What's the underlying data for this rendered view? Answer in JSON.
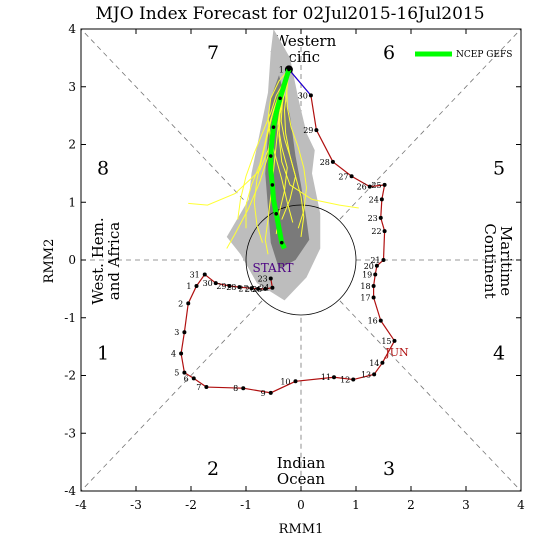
{
  "colors": {
    "observed": "#b01010",
    "forecast_link": "#0000ff",
    "ensemble_member": "#ffff33",
    "ensemble_mean": "#00ff00",
    "spread_outer": "#bdbdbd",
    "spread_inner": "#7a7a7a",
    "start_label": "#4b0082",
    "month_label": "#b01010"
  },
  "chart_data": {
    "type": "line",
    "title": "MJO Index Forecast for 02Jul2015-16Jul2015",
    "xlabel": "RMM1",
    "ylabel": "RMM2",
    "xlim": [
      -4,
      4
    ],
    "ylim": [
      -4,
      4
    ],
    "xticks": [
      -4,
      -3,
      -2,
      -1,
      0,
      1,
      2,
      3,
      4
    ],
    "yticks": [
      -4,
      -3,
      -2,
      -1,
      0,
      1,
      2,
      3,
      4
    ],
    "unit_circle_radius": 1,
    "legend": [
      {
        "label": "NCEP GEFS",
        "color": "#00ff00",
        "position": "top-right"
      }
    ],
    "phases": [
      {
        "label": "1",
        "x": -3.6,
        "y": -1.6
      },
      {
        "label": "2",
        "x": -1.6,
        "y": -3.6
      },
      {
        "label": "3",
        "x": 1.6,
        "y": -3.6
      },
      {
        "label": "4",
        "x": 3.6,
        "y": -1.6
      },
      {
        "label": "5",
        "x": 3.6,
        "y": 1.6
      },
      {
        "label": "6",
        "x": 1.6,
        "y": 3.6
      },
      {
        "label": "7",
        "x": -1.6,
        "y": 3.6
      },
      {
        "label": "8",
        "x": -3.6,
        "y": 1.6
      }
    ],
    "regions": [
      {
        "lines": [
          "Western",
          "Pacific"
        ],
        "orientation": "horizontal",
        "side": "top"
      },
      {
        "lines": [
          "Indian",
          "Ocean"
        ],
        "orientation": "horizontal",
        "side": "bottom"
      },
      {
        "lines": [
          "West. Hem.",
          "and Africa"
        ],
        "orientation": "vertical-left",
        "side": "left"
      },
      {
        "lines": [
          "Maritime",
          "Continent"
        ],
        "orientation": "vertical-right",
        "side": "right"
      }
    ],
    "start_label": "START",
    "month_label": "JUN",
    "observed": [
      {
        "day": "31",
        "x": -1.75,
        "y": -0.25
      },
      {
        "day": "1",
        "x": -1.9,
        "y": -0.45
      },
      {
        "day": "2",
        "x": -2.05,
        "y": -0.75
      },
      {
        "day": "3",
        "x": -2.12,
        "y": -1.25
      },
      {
        "day": "4",
        "x": -2.18,
        "y": -1.62
      },
      {
        "day": "5",
        "x": -2.12,
        "y": -1.95
      },
      {
        "day": "6",
        "x": -1.95,
        "y": -2.05
      },
      {
        "day": "7",
        "x": -1.72,
        "y": -2.2
      },
      {
        "day": "8",
        "x": -1.05,
        "y": -2.22
      },
      {
        "day": "9",
        "x": -0.55,
        "y": -2.3
      },
      {
        "day": "10",
        "x": -0.1,
        "y": -2.1
      },
      {
        "day": "11",
        "x": 0.6,
        "y": -2.03
      },
      {
        "day": "12",
        "x": 0.95,
        "y": -2.07
      },
      {
        "day": "13",
        "x": 1.33,
        "y": -1.98
      },
      {
        "day": "14",
        "x": 1.48,
        "y": -1.78
      },
      {
        "day": "15",
        "x": 1.7,
        "y": -1.4
      },
      {
        "day": "16",
        "x": 1.45,
        "y": -1.05
      },
      {
        "day": "17",
        "x": 1.32,
        "y": -0.65
      },
      {
        "day": "18",
        "x": 1.32,
        "y": -0.45
      },
      {
        "day": "19",
        "x": 1.35,
        "y": -0.25
      },
      {
        "day": "20",
        "x": 1.38,
        "y": -0.1
      },
      {
        "day": "21",
        "x": 1.5,
        "y": 0.0
      },
      {
        "day": "22",
        "x": 1.52,
        "y": 0.5
      },
      {
        "day": "23",
        "x": 1.45,
        "y": 0.73
      },
      {
        "day": "24",
        "x": 1.47,
        "y": 1.05
      },
      {
        "day": "25",
        "x": 1.52,
        "y": 1.3
      },
      {
        "day": "26",
        "x": 1.25,
        "y": 1.27
      },
      {
        "day": "27",
        "x": 0.92,
        "y": 1.45
      },
      {
        "day": "28",
        "x": 0.58,
        "y": 1.7
      },
      {
        "day": "29",
        "x": 0.28,
        "y": 2.25
      },
      {
        "day": "30",
        "x": 0.18,
        "y": 2.85
      },
      {
        "day": "1",
        "x": -0.22,
        "y": 3.3
      }
    ],
    "start_curl": [
      {
        "day": "30",
        "x": -1.55,
        "y": -0.4
      },
      {
        "day": "29",
        "x": -1.3,
        "y": -0.45
      },
      {
        "day": "28",
        "x": -1.12,
        "y": -0.47
      },
      {
        "day": "27",
        "x": -0.9,
        "y": -0.49
      },
      {
        "day": "26",
        "x": -0.78,
        "y": -0.5
      },
      {
        "day": "25",
        "x": -0.65,
        "y": -0.5
      },
      {
        "day": "24",
        "x": -0.52,
        "y": -0.48
      },
      {
        "day": "23",
        "x": -0.55,
        "y": -0.32
      }
    ],
    "ensemble_mean": [
      {
        "x": -0.22,
        "y": 3.3
      },
      {
        "x": -0.3,
        "y": 3.05
      },
      {
        "x": -0.38,
        "y": 2.8
      },
      {
        "x": -0.45,
        "y": 2.55
      },
      {
        "x": -0.5,
        "y": 2.3
      },
      {
        "x": -0.53,
        "y": 2.05
      },
      {
        "x": -0.55,
        "y": 1.8
      },
      {
        "x": -0.55,
        "y": 1.55
      },
      {
        "x": -0.52,
        "y": 1.3
      },
      {
        "x": -0.5,
        "y": 1.05
      },
      {
        "x": -0.45,
        "y": 0.8
      },
      {
        "x": -0.4,
        "y": 0.55
      },
      {
        "x": -0.35,
        "y": 0.3
      },
      {
        "x": -0.3,
        "y": 0.2
      }
    ],
    "ensemble_members": [
      [
        [
          -0.22,
          3.3
        ],
        [
          -0.25,
          3.0
        ],
        [
          -0.3,
          2.6
        ],
        [
          -0.28,
          2.2
        ],
        [
          -0.2,
          1.8
        ],
        [
          -0.1,
          1.45
        ],
        [
          0.0,
          1.1
        ],
        [
          0.05,
          0.75
        ],
        [
          0.0,
          0.4
        ]
      ],
      [
        [
          -0.22,
          3.3
        ],
        [
          -0.35,
          3.0
        ],
        [
          -0.5,
          2.6
        ],
        [
          -0.6,
          2.2
        ],
        [
          -0.7,
          1.8
        ],
        [
          -0.8,
          1.4
        ],
        [
          -0.85,
          1.0
        ],
        [
          -0.8,
          0.6
        ],
        [
          -0.7,
          0.3
        ]
      ],
      [
        [
          -0.22,
          3.3
        ],
        [
          -0.3,
          2.9
        ],
        [
          -0.4,
          2.45
        ],
        [
          -0.45,
          2.0
        ],
        [
          -0.5,
          1.55
        ],
        [
          -0.55,
          1.1
        ],
        [
          -0.6,
          0.7
        ],
        [
          -0.65,
          0.35
        ],
        [
          -0.6,
          0.1
        ]
      ],
      [
        [
          -0.22,
          3.3
        ],
        [
          -0.28,
          3.1
        ],
        [
          -0.36,
          2.75
        ],
        [
          -0.42,
          2.35
        ],
        [
          -0.35,
          1.95
        ],
        [
          -0.25,
          1.6
        ],
        [
          -0.3,
          1.2
        ],
        [
          -0.4,
          0.8
        ],
        [
          -0.45,
          0.45
        ]
      ],
      [
        [
          -0.22,
          3.3
        ],
        [
          -0.32,
          3.05
        ],
        [
          -0.46,
          2.7
        ],
        [
          -0.58,
          2.35
        ],
        [
          -0.66,
          2.0
        ],
        [
          -0.75,
          1.65
        ],
        [
          -0.9,
          1.3
        ],
        [
          -1.0,
          0.95
        ],
        [
          -1.0,
          0.55
        ]
      ],
      [
        [
          -0.22,
          3.3
        ],
        [
          -0.26,
          3.0
        ],
        [
          -0.25,
          2.65
        ],
        [
          -0.18,
          2.3
        ],
        [
          -0.05,
          1.95
        ],
        [
          0.05,
          1.6
        ],
        [
          0.1,
          1.25
        ],
        [
          0.05,
          0.85
        ],
        [
          -0.05,
          0.55
        ]
      ],
      [
        [
          -0.22,
          3.3
        ],
        [
          -0.33,
          3.0
        ],
        [
          -0.42,
          2.65
        ],
        [
          -0.48,
          2.25
        ],
        [
          -0.6,
          1.9
        ],
        [
          -0.75,
          1.55
        ],
        [
          -1.2,
          1.15
        ],
        [
          -1.7,
          0.95
        ],
        [
          -2.05,
          0.98
        ]
      ],
      [
        [
          -0.22,
          3.3
        ],
        [
          -0.3,
          2.95
        ],
        [
          -0.38,
          2.55
        ],
        [
          -0.4,
          2.15
        ],
        [
          -0.35,
          1.7
        ],
        [
          -0.2,
          1.3
        ],
        [
          0.2,
          1.05
        ],
        [
          0.7,
          0.95
        ],
        [
          1.05,
          0.9
        ]
      ],
      [
        [
          -0.22,
          3.3
        ],
        [
          -0.35,
          3.0
        ],
        [
          -0.48,
          2.6
        ],
        [
          -0.55,
          2.2
        ],
        [
          -0.6,
          1.8
        ],
        [
          -0.75,
          1.35
        ],
        [
          -0.95,
          0.9
        ],
        [
          -1.2,
          0.45
        ],
        [
          -1.35,
          0.2
        ]
      ],
      [
        [
          -0.22,
          3.3
        ],
        [
          -0.29,
          3.0
        ],
        [
          -0.34,
          2.7
        ],
        [
          -0.36,
          2.4
        ],
        [
          -0.3,
          2.1
        ],
        [
          -0.2,
          1.8
        ],
        [
          -0.1,
          1.45
        ],
        [
          -0.2,
          1.05
        ],
        [
          -0.35,
          0.7
        ]
      ],
      [
        [
          -0.22,
          3.3
        ],
        [
          -0.4,
          3.1
        ],
        [
          -0.55,
          2.8
        ],
        [
          -0.6,
          2.45
        ],
        [
          -0.55,
          2.1
        ],
        [
          -0.45,
          1.75
        ],
        [
          -0.35,
          1.4
        ],
        [
          -0.25,
          1.0
        ],
        [
          -0.15,
          0.65
        ]
      ],
      [
        [
          -0.22,
          3.3
        ],
        [
          -0.3,
          3.1
        ],
        [
          -0.45,
          2.85
        ],
        [
          -0.55,
          2.55
        ],
        [
          -0.7,
          2.2
        ],
        [
          -0.85,
          1.85
        ],
        [
          -1.0,
          1.45
        ],
        [
          -1.1,
          1.05
        ],
        [
          -1.15,
          0.7
        ]
      ]
    ],
    "spread_outer": [
      [
        -0.5,
        4.0
      ],
      [
        -0.2,
        3.5
      ],
      [
        -0.05,
        2.8
      ],
      [
        0.1,
        2.2
      ],
      [
        0.25,
        1.9
      ],
      [
        0.2,
        1.5
      ],
      [
        0.35,
        0.8
      ],
      [
        0.35,
        0.2
      ],
      [
        0.1,
        -0.3
      ],
      [
        -0.3,
        -0.7
      ],
      [
        -0.8,
        -0.4
      ],
      [
        -1.1,
        0.1
      ],
      [
        -1.35,
        0.4
      ],
      [
        -0.95,
        1.05
      ],
      [
        -0.9,
        1.5
      ],
      [
        -0.75,
        2.2
      ],
      [
        -0.6,
        2.9
      ],
      [
        -0.55,
        3.6
      ]
    ],
    "spread_inner": [
      [
        -0.4,
        3.2
      ],
      [
        -0.2,
        2.5
      ],
      [
        -0.1,
        1.8
      ],
      [
        0.0,
        1.3
      ],
      [
        0.1,
        0.7
      ],
      [
        0.15,
        0.35
      ],
      [
        -0.1,
        0.0
      ],
      [
        -0.4,
        -0.15
      ],
      [
        -0.55,
        0.3
      ],
      [
        -0.6,
        0.9
      ],
      [
        -0.65,
        1.5
      ],
      [
        -0.6,
        2.2
      ],
      [
        -0.55,
        2.8
      ]
    ]
  }
}
